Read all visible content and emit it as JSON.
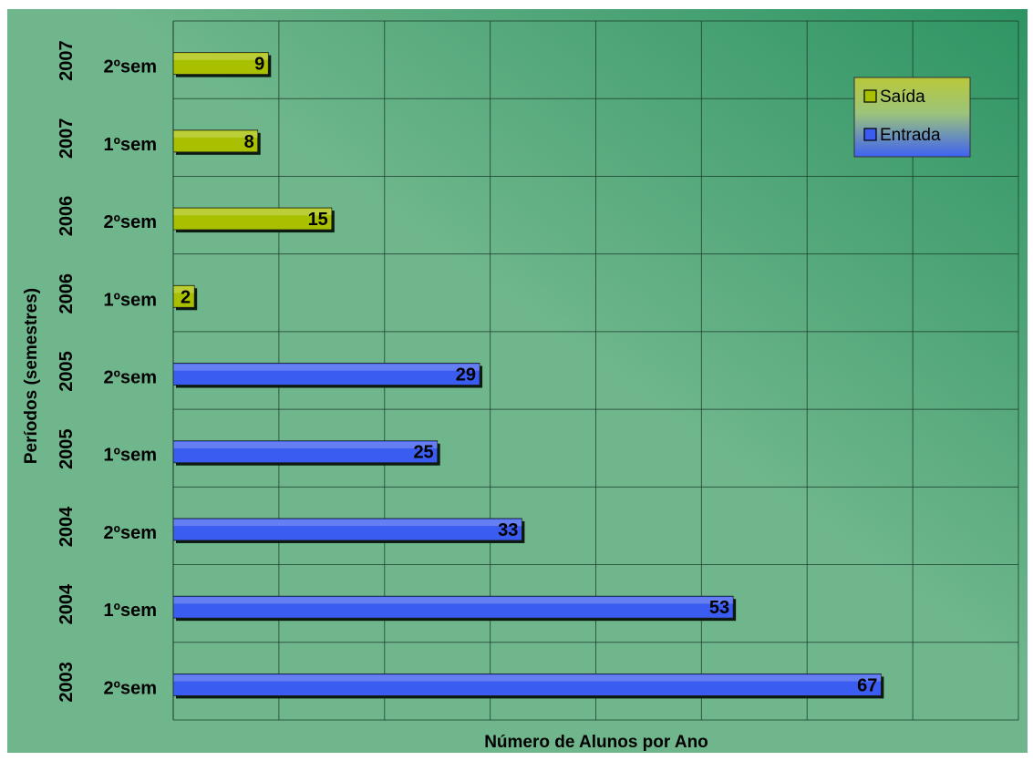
{
  "chart_data": {
    "type": "bar",
    "orientation": "horizontal",
    "title": "",
    "xlabel": "Número de Alunos por Ano",
    "ylabel": "Períodos (semestres)",
    "xlim": [
      0,
      80
    ],
    "x_tick_step": 10,
    "grid": true,
    "legend_position": "top-right",
    "categories": [
      {
        "semester": "2ºsem",
        "year": "2003"
      },
      {
        "semester": "1ºsem",
        "year": "2004"
      },
      {
        "semester": "2ºsem",
        "year": "2004"
      },
      {
        "semester": "1ºsem",
        "year": "2005"
      },
      {
        "semester": "2ºsem",
        "year": "2005"
      },
      {
        "semester": "1ºsem",
        "year": "2006"
      },
      {
        "semester": "2ºsem",
        "year": "2006"
      },
      {
        "semester": "1ºsem",
        "year": "2007"
      },
      {
        "semester": "2ºsem",
        "year": "2007"
      }
    ],
    "series": [
      {
        "name": "Saída",
        "color": "#a8c000",
        "values": [
          null,
          null,
          null,
          null,
          null,
          2,
          15,
          8,
          9
        ]
      },
      {
        "name": "Entrada",
        "color": "#3a5cf0",
        "values": [
          67,
          53,
          33,
          25,
          29,
          null,
          null,
          null,
          null
        ]
      }
    ],
    "legend_order": [
      "Saída",
      "Entrada"
    ]
  },
  "colors": {
    "background_start": "#6fb68c",
    "background_end": "#2e9463",
    "plot_area": "#5eae85",
    "grid": "#1a3a28",
    "text": "#000000"
  }
}
